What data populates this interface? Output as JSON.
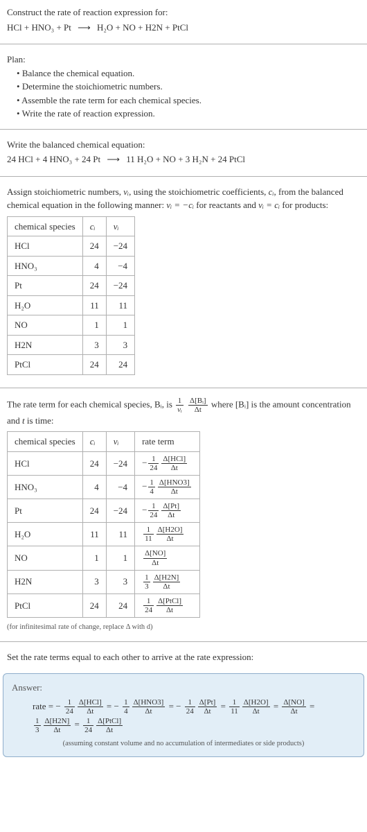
{
  "header": {
    "prompt": "Construct the rate of reaction expression for:",
    "equation_lhs": "HCl + HNO₃ + Pt",
    "arrow": "⟶",
    "equation_rhs": "H₂O + NO + H2N + PtCl"
  },
  "plan": {
    "title": "Plan:",
    "items": [
      "Balance the chemical equation.",
      "Determine the stoichiometric numbers.",
      "Assemble the rate term for each chemical species.",
      "Write the rate of reaction expression."
    ]
  },
  "balanced": {
    "title": "Write the balanced chemical equation:",
    "lhs": "24 HCl + 4 HNO₃ + 24 Pt",
    "arrow": "⟶",
    "rhs": "11 H₂O + NO + 3 H₂N + 24 PtCl"
  },
  "stoich_intro": {
    "line1a": "Assign stoichiometric numbers, ",
    "nu_i": "νᵢ",
    "line1b": ", using the stoichiometric coefficients, ",
    "c_i": "cᵢ",
    "line1c": ", from the balanced chemical equation in the following manner: ",
    "rel1": "νᵢ = −cᵢ",
    "line1d": " for reactants and ",
    "rel2": "νᵢ = cᵢ",
    "line1e": " for products:"
  },
  "stoich_table": {
    "headers": [
      "chemical species",
      "cᵢ",
      "νᵢ"
    ],
    "rows": [
      [
        "HCl",
        "24",
        "−24"
      ],
      [
        "HNO₃",
        "4",
        "−4"
      ],
      [
        "Pt",
        "24",
        "−24"
      ],
      [
        "H₂O",
        "11",
        "11"
      ],
      [
        "NO",
        "1",
        "1"
      ],
      [
        "H2N",
        "3",
        "3"
      ],
      [
        "PtCl",
        "24",
        "24"
      ]
    ]
  },
  "rate_intro": {
    "a": "The rate term for each chemical species, Bᵢ, is ",
    "frac1_top": "1",
    "frac1_bot": "νᵢ",
    "frac2_top": "Δ[Bᵢ]",
    "frac2_bot": "Δt",
    "b": " where [Bᵢ] is the amount concentration and ",
    "t": "t",
    "c": " is time:"
  },
  "rate_table": {
    "headers": [
      "chemical species",
      "cᵢ",
      "νᵢ",
      "rate term"
    ],
    "rows": [
      {
        "sp": "HCl",
        "c": "24",
        "nu": "−24",
        "neg": "−",
        "ft": "1",
        "fb": "24",
        "dt": "Δ[HCl]",
        "db": "Δt"
      },
      {
        "sp": "HNO₃",
        "c": "4",
        "nu": "−4",
        "neg": "−",
        "ft": "1",
        "fb": "4",
        "dt": "Δ[HNO3]",
        "db": "Δt"
      },
      {
        "sp": "Pt",
        "c": "24",
        "nu": "−24",
        "neg": "−",
        "ft": "1",
        "fb": "24",
        "dt": "Δ[Pt]",
        "db": "Δt"
      },
      {
        "sp": "H₂O",
        "c": "11",
        "nu": "11",
        "neg": "",
        "ft": "1",
        "fb": "11",
        "dt": "Δ[H2O]",
        "db": "Δt"
      },
      {
        "sp": "NO",
        "c": "1",
        "nu": "1",
        "neg": "",
        "ft": "",
        "fb": "",
        "dt": "Δ[NO]",
        "db": "Δt"
      },
      {
        "sp": "H2N",
        "c": "3",
        "nu": "3",
        "neg": "",
        "ft": "1",
        "fb": "3",
        "dt": "Δ[H2N]",
        "db": "Δt"
      },
      {
        "sp": "PtCl",
        "c": "24",
        "nu": "24",
        "neg": "",
        "ft": "1",
        "fb": "24",
        "dt": "Δ[PtCl]",
        "db": "Δt"
      }
    ],
    "note": "(for infinitesimal rate of change, replace Δ with d)"
  },
  "final_intro": "Set the rate terms equal to each other to arrive at the rate expression:",
  "answer": {
    "label": "Answer:",
    "prefix": "rate = ",
    "terms": [
      {
        "neg": "−",
        "ft": "1",
        "fb": "24",
        "dt": "Δ[HCl]",
        "db": "Δt"
      },
      {
        "neg": "−",
        "ft": "1",
        "fb": "4",
        "dt": "Δ[HNO3]",
        "db": "Δt"
      },
      {
        "neg": "−",
        "ft": "1",
        "fb": "24",
        "dt": "Δ[Pt]",
        "db": "Δt"
      },
      {
        "neg": "",
        "ft": "1",
        "fb": "11",
        "dt": "Δ[H2O]",
        "db": "Δt"
      },
      {
        "neg": "",
        "ft": "",
        "fb": "",
        "dt": "Δ[NO]",
        "db": "Δt"
      },
      {
        "neg": "",
        "ft": "1",
        "fb": "3",
        "dt": "Δ[H2N]",
        "db": "Δt"
      },
      {
        "neg": "",
        "ft": "1",
        "fb": "24",
        "dt": "Δ[PtCl]",
        "db": "Δt"
      }
    ],
    "note": "(assuming constant volume and no accumulation of intermediates or side products)"
  }
}
